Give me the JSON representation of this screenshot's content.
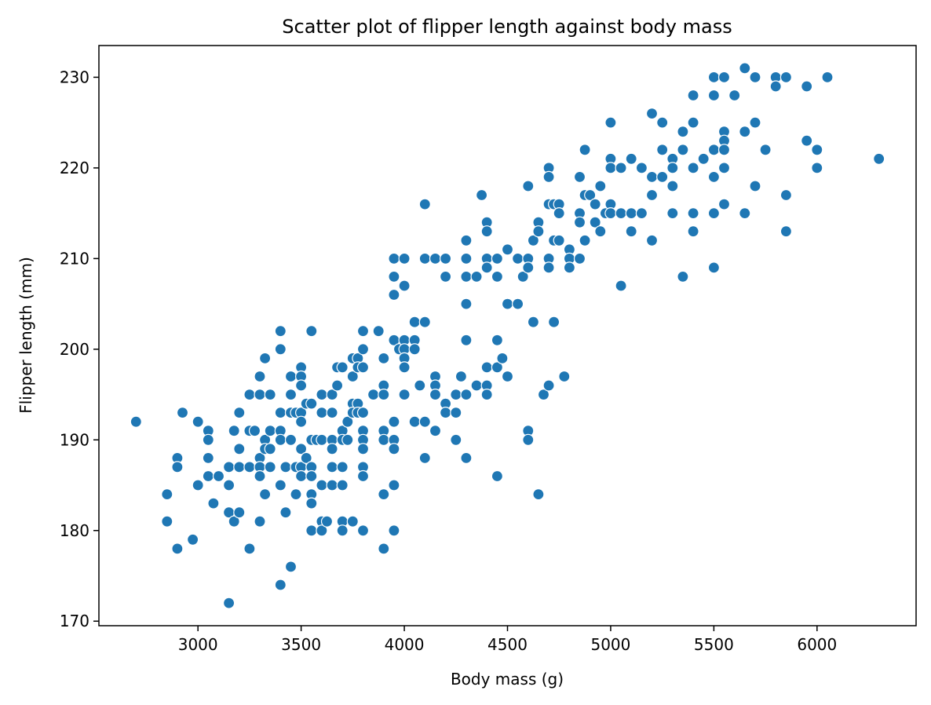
{
  "chart_data": {
    "type": "scatter",
    "title": "Scatter plot of flipper length against body mass",
    "xlabel": "Body mass (g)",
    "ylabel": "Flipper length (mm)",
    "xlim": [
      2520,
      6480
    ],
    "ylim": [
      169.5,
      233.5
    ],
    "xticks": [
      3000,
      3500,
      4000,
      4500,
      5000,
      5500,
      6000
    ],
    "yticks": [
      170,
      180,
      190,
      200,
      210,
      220,
      230
    ],
    "grid": false,
    "legend": "none",
    "marker_color": "#1f77b4",
    "points": [
      [
        2700,
        192
      ],
      [
        2850,
        184
      ],
      [
        2850,
        181
      ],
      [
        2900,
        188
      ],
      [
        2900,
        187
      ],
      [
        2900,
        178
      ],
      [
        2925,
        193
      ],
      [
        2975,
        179
      ],
      [
        3000,
        192
      ],
      [
        3000,
        185
      ],
      [
        3050,
        191
      ],
      [
        3050,
        190
      ],
      [
        3050,
        188
      ],
      [
        3050,
        186
      ],
      [
        3075,
        183
      ],
      [
        3100,
        186
      ],
      [
        3150,
        187
      ],
      [
        3150,
        185
      ],
      [
        3150,
        182
      ],
      [
        3150,
        172
      ],
      [
        3175,
        191
      ],
      [
        3175,
        181
      ],
      [
        3200,
        193
      ],
      [
        3200,
        189
      ],
      [
        3200,
        187
      ],
      [
        3200,
        182
      ],
      [
        3250,
        195
      ],
      [
        3250,
        191
      ],
      [
        3250,
        187
      ],
      [
        3250,
        178
      ],
      [
        3275,
        191
      ],
      [
        3300,
        197
      ],
      [
        3300,
        195
      ],
      [
        3300,
        188
      ],
      [
        3300,
        187
      ],
      [
        3300,
        186
      ],
      [
        3300,
        181
      ],
      [
        3325,
        199
      ],
      [
        3325,
        190
      ],
      [
        3325,
        189
      ],
      [
        3325,
        184
      ],
      [
        3350,
        195
      ],
      [
        3350,
        191
      ],
      [
        3350,
        189
      ],
      [
        3350,
        187
      ],
      [
        3400,
        202
      ],
      [
        3400,
        200
      ],
      [
        3400,
        193
      ],
      [
        3400,
        191
      ],
      [
        3400,
        190
      ],
      [
        3400,
        185
      ],
      [
        3400,
        174
      ],
      [
        3425,
        187
      ],
      [
        3425,
        182
      ],
      [
        3450,
        197
      ],
      [
        3450,
        195
      ],
      [
        3450,
        193
      ],
      [
        3450,
        190
      ],
      [
        3450,
        176
      ],
      [
        3475,
        193
      ],
      [
        3475,
        187
      ],
      [
        3475,
        184
      ],
      [
        3500,
        198
      ],
      [
        3500,
        197
      ],
      [
        3500,
        196
      ],
      [
        3500,
        193
      ],
      [
        3500,
        192
      ],
      [
        3500,
        189
      ],
      [
        3500,
        187
      ],
      [
        3500,
        186
      ],
      [
        3525,
        194
      ],
      [
        3525,
        188
      ],
      [
        3550,
        202
      ],
      [
        3550,
        194
      ],
      [
        3550,
        190
      ],
      [
        3550,
        187
      ],
      [
        3550,
        186
      ],
      [
        3550,
        184
      ],
      [
        3550,
        183
      ],
      [
        3550,
        180
      ],
      [
        3575,
        190
      ],
      [
        3600,
        195
      ],
      [
        3600,
        193
      ],
      [
        3600,
        190
      ],
      [
        3600,
        185
      ],
      [
        3600,
        181
      ],
      [
        3600,
        180
      ],
      [
        3625,
        181
      ],
      [
        3650,
        195
      ],
      [
        3650,
        193
      ],
      [
        3650,
        190
      ],
      [
        3650,
        189
      ],
      [
        3650,
        187
      ],
      [
        3650,
        185
      ],
      [
        3675,
        198
      ],
      [
        3675,
        196
      ],
      [
        3700,
        198
      ],
      [
        3700,
        191
      ],
      [
        3700,
        190
      ],
      [
        3700,
        187
      ],
      [
        3700,
        185
      ],
      [
        3700,
        181
      ],
      [
        3700,
        180
      ],
      [
        3725,
        192
      ],
      [
        3725,
        190
      ],
      [
        3750,
        199
      ],
      [
        3750,
        197
      ],
      [
        3750,
        194
      ],
      [
        3750,
        193
      ],
      [
        3750,
        181
      ],
      [
        3775,
        199
      ],
      [
        3775,
        198
      ],
      [
        3775,
        194
      ],
      [
        3775,
        193
      ],
      [
        3800,
        202
      ],
      [
        3800,
        200
      ],
      [
        3800,
        198
      ],
      [
        3800,
        193
      ],
      [
        3800,
        191
      ],
      [
        3800,
        190
      ],
      [
        3800,
        189
      ],
      [
        3800,
        187
      ],
      [
        3800,
        186
      ],
      [
        3800,
        180
      ],
      [
        3850,
        195
      ],
      [
        3875,
        202
      ],
      [
        3900,
        199
      ],
      [
        3900,
        196
      ],
      [
        3900,
        195
      ],
      [
        3900,
        191
      ],
      [
        3900,
        190
      ],
      [
        3900,
        184
      ],
      [
        3900,
        178
      ],
      [
        3950,
        210
      ],
      [
        3950,
        208
      ],
      [
        3950,
        206
      ],
      [
        3950,
        201
      ],
      [
        3950,
        192
      ],
      [
        3950,
        190
      ],
      [
        3950,
        189
      ],
      [
        3950,
        185
      ],
      [
        3950,
        180
      ],
      [
        3975,
        200
      ],
      [
        4000,
        210
      ],
      [
        4000,
        207
      ],
      [
        4000,
        201
      ],
      [
        4000,
        200
      ],
      [
        4000,
        199
      ],
      [
        4000,
        198
      ],
      [
        4000,
        195
      ],
      [
        4050,
        203
      ],
      [
        4050,
        201
      ],
      [
        4050,
        200
      ],
      [
        4050,
        192
      ],
      [
        4075,
        196
      ],
      [
        4100,
        216
      ],
      [
        4100,
        210
      ],
      [
        4100,
        203
      ],
      [
        4100,
        192
      ],
      [
        4100,
        188
      ],
      [
        4150,
        210
      ],
      [
        4150,
        197
      ],
      [
        4150,
        196
      ],
      [
        4150,
        195
      ],
      [
        4150,
        191
      ],
      [
        4200,
        210
      ],
      [
        4200,
        208
      ],
      [
        4200,
        194
      ],
      [
        4200,
        193
      ],
      [
        4250,
        195
      ],
      [
        4250,
        193
      ],
      [
        4250,
        190
      ],
      [
        4275,
        197
      ],
      [
        4300,
        212
      ],
      [
        4300,
        210
      ],
      [
        4300,
        208
      ],
      [
        4300,
        205
      ],
      [
        4300,
        201
      ],
      [
        4300,
        195
      ],
      [
        4300,
        188
      ],
      [
        4350,
        208
      ],
      [
        4350,
        196
      ],
      [
        4375,
        217
      ],
      [
        4400,
        214
      ],
      [
        4400,
        213
      ],
      [
        4400,
        210
      ],
      [
        4400,
        209
      ],
      [
        4400,
        198
      ],
      [
        4400,
        196
      ],
      [
        4400,
        195
      ],
      [
        4450,
        210
      ],
      [
        4450,
        208
      ],
      [
        4450,
        201
      ],
      [
        4450,
        198
      ],
      [
        4450,
        186
      ],
      [
        4475,
        199
      ],
      [
        4500,
        211
      ],
      [
        4500,
        205
      ],
      [
        4500,
        197
      ],
      [
        4550,
        210
      ],
      [
        4550,
        205
      ],
      [
        4575,
        208
      ],
      [
        4600,
        218
      ],
      [
        4600,
        210
      ],
      [
        4600,
        209
      ],
      [
        4600,
        191
      ],
      [
        4600,
        190
      ],
      [
        4625,
        212
      ],
      [
        4625,
        203
      ],
      [
        4650,
        214
      ],
      [
        4650,
        213
      ],
      [
        4650,
        184
      ],
      [
        4675,
        195
      ],
      [
        4700,
        220
      ],
      [
        4700,
        219
      ],
      [
        4700,
        216
      ],
      [
        4700,
        210
      ],
      [
        4700,
        209
      ],
      [
        4700,
        196
      ],
      [
        4725,
        216
      ],
      [
        4725,
        212
      ],
      [
        4725,
        203
      ],
      [
        4750,
        216
      ],
      [
        4750,
        215
      ],
      [
        4750,
        212
      ],
      [
        4775,
        197
      ],
      [
        4800,
        211
      ],
      [
        4800,
        210
      ],
      [
        4800,
        209
      ],
      [
        4850,
        219
      ],
      [
        4850,
        215
      ],
      [
        4850,
        214
      ],
      [
        4850,
        210
      ],
      [
        4875,
        222
      ],
      [
        4875,
        217
      ],
      [
        4875,
        212
      ],
      [
        4900,
        217
      ],
      [
        4925,
        216
      ],
      [
        4925,
        214
      ],
      [
        4950,
        218
      ],
      [
        4950,
        213
      ],
      [
        4975,
        215
      ],
      [
        5000,
        225
      ],
      [
        5000,
        221
      ],
      [
        5000,
        220
      ],
      [
        5000,
        216
      ],
      [
        5000,
        215
      ],
      [
        5050,
        220
      ],
      [
        5050,
        215
      ],
      [
        5050,
        207
      ],
      [
        5100,
        221
      ],
      [
        5100,
        215
      ],
      [
        5100,
        213
      ],
      [
        5150,
        220
      ],
      [
        5150,
        215
      ],
      [
        5200,
        226
      ],
      [
        5200,
        219
      ],
      [
        5200,
        217
      ],
      [
        5200,
        212
      ],
      [
        5250,
        225
      ],
      [
        5250,
        222
      ],
      [
        5250,
        219
      ],
      [
        5300,
        221
      ],
      [
        5300,
        220
      ],
      [
        5300,
        218
      ],
      [
        5300,
        215
      ],
      [
        5350,
        224
      ],
      [
        5350,
        222
      ],
      [
        5350,
        208
      ],
      [
        5400,
        228
      ],
      [
        5400,
        225
      ],
      [
        5400,
        220
      ],
      [
        5400,
        215
      ],
      [
        5400,
        213
      ],
      [
        5450,
        221
      ],
      [
        5500,
        230
      ],
      [
        5500,
        228
      ],
      [
        5500,
        222
      ],
      [
        5500,
        219
      ],
      [
        5500,
        215
      ],
      [
        5500,
        209
      ],
      [
        5550,
        230
      ],
      [
        5550,
        224
      ],
      [
        5550,
        223
      ],
      [
        5550,
        222
      ],
      [
        5550,
        220
      ],
      [
        5550,
        216
      ],
      [
        5600,
        228
      ],
      [
        5650,
        231
      ],
      [
        5650,
        224
      ],
      [
        5650,
        215
      ],
      [
        5700,
        230
      ],
      [
        5700,
        225
      ],
      [
        5700,
        218
      ],
      [
        5750,
        222
      ],
      [
        5800,
        230
      ],
      [
        5800,
        229
      ],
      [
        5850,
        230
      ],
      [
        5850,
        217
      ],
      [
        5850,
        213
      ],
      [
        5950,
        229
      ],
      [
        5950,
        223
      ],
      [
        6000,
        222
      ],
      [
        6000,
        220
      ],
      [
        6050,
        230
      ],
      [
        6300,
        221
      ]
    ]
  }
}
